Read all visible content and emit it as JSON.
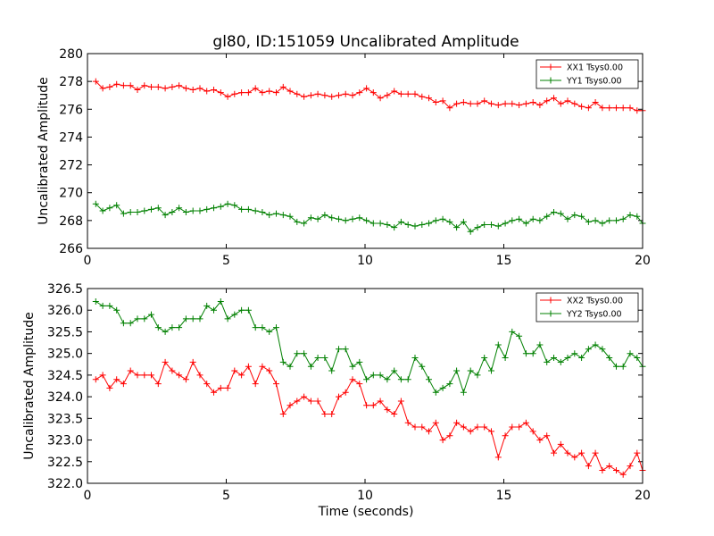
{
  "figure": {
    "title": "gl80, ID:151059 Uncalibrated Amplitude"
  },
  "chart_data": [
    {
      "type": "line",
      "title": "gl80, ID:151059 Uncalibrated Amplitude",
      "xlabel": "",
      "ylabel": "Uncalibrated Amplitude",
      "xlim": [
        0,
        20
      ],
      "ylim": [
        266,
        280
      ],
      "xticks": [
        "0",
        "5",
        "10",
        "15",
        "20"
      ],
      "yticks": [
        "266",
        "268",
        "270",
        "272",
        "274",
        "276",
        "278",
        "280"
      ],
      "legend_position": "top-right",
      "x": [
        0.3,
        0.55,
        0.8,
        1.05,
        1.3,
        1.55,
        1.8,
        2.05,
        2.3,
        2.55,
        2.8,
        3.05,
        3.3,
        3.55,
        3.8,
        4.05,
        4.3,
        4.55,
        4.8,
        5.05,
        5.3,
        5.55,
        5.8,
        6.05,
        6.3,
        6.55,
        6.8,
        7.05,
        7.3,
        7.55,
        7.8,
        8.05,
        8.3,
        8.55,
        8.8,
        9.05,
        9.3,
        9.55,
        9.8,
        10.05,
        10.3,
        10.55,
        10.8,
        11.05,
        11.3,
        11.55,
        11.8,
        12.05,
        12.3,
        12.55,
        12.8,
        13.05,
        13.3,
        13.55,
        13.8,
        14.05,
        14.3,
        14.55,
        14.8,
        15.05,
        15.3,
        15.55,
        15.8,
        16.05,
        16.3,
        16.55,
        16.8,
        17.05,
        17.3,
        17.55,
        17.8,
        18.05,
        18.3,
        18.55,
        18.8,
        19.05,
        19.3,
        19.55,
        19.8,
        20.0
      ],
      "series": [
        {
          "name": "XX1 Tsys0.00",
          "color": "#ff0000",
          "values": [
            278.0,
            277.5,
            277.6,
            277.8,
            277.7,
            277.7,
            277.4,
            277.7,
            277.6,
            277.6,
            277.5,
            277.6,
            277.7,
            277.5,
            277.4,
            277.5,
            277.3,
            277.4,
            277.2,
            276.9,
            277.1,
            277.2,
            277.2,
            277.5,
            277.2,
            277.3,
            277.2,
            277.6,
            277.3,
            277.1,
            276.9,
            277.0,
            277.1,
            277.0,
            276.9,
            277.0,
            277.1,
            277.0,
            277.2,
            277.5,
            277.2,
            276.8,
            277.0,
            277.3,
            277.1,
            277.1,
            277.1,
            276.9,
            276.8,
            276.5,
            276.6,
            276.1,
            276.4,
            276.5,
            276.4,
            276.4,
            276.6,
            276.4,
            276.3,
            276.4,
            276.4,
            276.3,
            276.4,
            276.5,
            276.3,
            276.6,
            276.8,
            276.4,
            276.6,
            276.4,
            276.2,
            276.1,
            276.5,
            276.1,
            276.1,
            276.1,
            276.1,
            276.1,
            275.9,
            275.9
          ]
        },
        {
          "name": "YY1 Tsys0.00",
          "color": "#008000",
          "values": [
            269.2,
            268.7,
            268.9,
            269.1,
            268.5,
            268.6,
            268.6,
            268.7,
            268.8,
            268.9,
            268.4,
            268.6,
            268.9,
            268.6,
            268.7,
            268.7,
            268.8,
            268.9,
            269.0,
            269.2,
            269.1,
            268.8,
            268.8,
            268.7,
            268.6,
            268.4,
            268.5,
            268.4,
            268.3,
            267.9,
            267.8,
            268.2,
            268.1,
            268.4,
            268.2,
            268.1,
            268.0,
            268.1,
            268.2,
            268.0,
            267.8,
            267.8,
            267.7,
            267.5,
            267.9,
            267.7,
            267.6,
            267.7,
            267.8,
            268.0,
            268.1,
            267.9,
            267.5,
            267.9,
            267.2,
            267.5,
            267.7,
            267.7,
            267.6,
            267.8,
            268.0,
            268.1,
            267.8,
            268.1,
            268.0,
            268.3,
            268.6,
            268.5,
            268.1,
            268.4,
            268.3,
            267.9,
            268.0,
            267.8,
            268.0,
            268.0,
            268.1,
            268.4,
            268.3,
            267.8
          ]
        }
      ]
    },
    {
      "type": "line",
      "title": "",
      "xlabel": "Time (seconds)",
      "ylabel": "Uncalibrated Amplitude",
      "xlim": [
        0,
        20
      ],
      "ylim": [
        322.0,
        326.5
      ],
      "xticks": [
        "0",
        "5",
        "10",
        "15",
        "20"
      ],
      "yticks": [
        "322.0",
        "322.5",
        "323.0",
        "323.5",
        "324.0",
        "324.5",
        "325.0",
        "325.5",
        "326.0",
        "326.5"
      ],
      "legend_position": "top-right",
      "x": [
        0.3,
        0.55,
        0.8,
        1.05,
        1.3,
        1.55,
        1.8,
        2.05,
        2.3,
        2.55,
        2.8,
        3.05,
        3.3,
        3.55,
        3.8,
        4.05,
        4.3,
        4.55,
        4.8,
        5.05,
        5.3,
        5.55,
        5.8,
        6.05,
        6.3,
        6.55,
        6.8,
        7.05,
        7.3,
        7.55,
        7.8,
        8.05,
        8.3,
        8.55,
        8.8,
        9.05,
        9.3,
        9.55,
        9.8,
        10.05,
        10.3,
        10.55,
        10.8,
        11.05,
        11.3,
        11.55,
        11.8,
        12.05,
        12.3,
        12.55,
        12.8,
        13.05,
        13.3,
        13.55,
        13.8,
        14.05,
        14.3,
        14.55,
        14.8,
        15.05,
        15.3,
        15.55,
        15.8,
        16.05,
        16.3,
        16.55,
        16.8,
        17.05,
        17.3,
        17.55,
        17.8,
        18.05,
        18.3,
        18.55,
        18.8,
        19.05,
        19.3,
        19.55,
        19.8,
        20.0
      ],
      "series": [
        {
          "name": "XX2 Tsys0.00",
          "color": "#ff0000",
          "values": [
            324.4,
            324.5,
            324.2,
            324.4,
            324.3,
            324.6,
            324.5,
            324.5,
            324.5,
            324.3,
            324.8,
            324.6,
            324.5,
            324.4,
            324.8,
            324.5,
            324.3,
            324.1,
            324.2,
            324.2,
            324.6,
            324.5,
            324.7,
            324.3,
            324.7,
            324.6,
            324.3,
            323.6,
            323.8,
            323.9,
            324.0,
            323.9,
            323.9,
            323.6,
            323.6,
            324.0,
            324.1,
            324.4,
            324.3,
            323.8,
            323.8,
            323.9,
            323.7,
            323.6,
            323.9,
            323.4,
            323.3,
            323.3,
            323.2,
            323.4,
            323.0,
            323.1,
            323.4,
            323.3,
            323.2,
            323.3,
            323.3,
            323.2,
            322.6,
            323.1,
            323.3,
            323.3,
            323.4,
            323.2,
            323.0,
            323.1,
            322.7,
            322.9,
            322.7,
            322.6,
            322.7,
            322.4,
            322.7,
            322.3,
            322.4,
            322.3,
            322.2,
            322.4,
            322.7,
            322.3
          ]
        },
        {
          "name": "YY2 Tsys0.00",
          "color": "#008000",
          "values": [
            326.2,
            326.1,
            326.1,
            326.0,
            325.7,
            325.7,
            325.8,
            325.8,
            325.9,
            325.6,
            325.5,
            325.6,
            325.6,
            325.8,
            325.8,
            325.8,
            326.1,
            326.0,
            326.2,
            325.8,
            325.9,
            326.0,
            326.0,
            325.6,
            325.6,
            325.5,
            325.6,
            324.8,
            324.7,
            325.0,
            325.0,
            324.7,
            324.9,
            324.9,
            324.6,
            325.1,
            325.1,
            324.7,
            324.8,
            324.4,
            324.5,
            324.5,
            324.4,
            324.6,
            324.4,
            324.4,
            324.9,
            324.7,
            324.4,
            324.1,
            324.2,
            324.3,
            324.6,
            324.1,
            324.6,
            324.5,
            324.9,
            324.6,
            325.2,
            324.9,
            325.5,
            325.4,
            325.0,
            325.0,
            325.2,
            324.8,
            324.9,
            324.8,
            324.9,
            325.0,
            324.9,
            325.1,
            325.2,
            325.1,
            324.9,
            324.7,
            324.7,
            325.0,
            324.9,
            324.7
          ]
        }
      ]
    }
  ]
}
